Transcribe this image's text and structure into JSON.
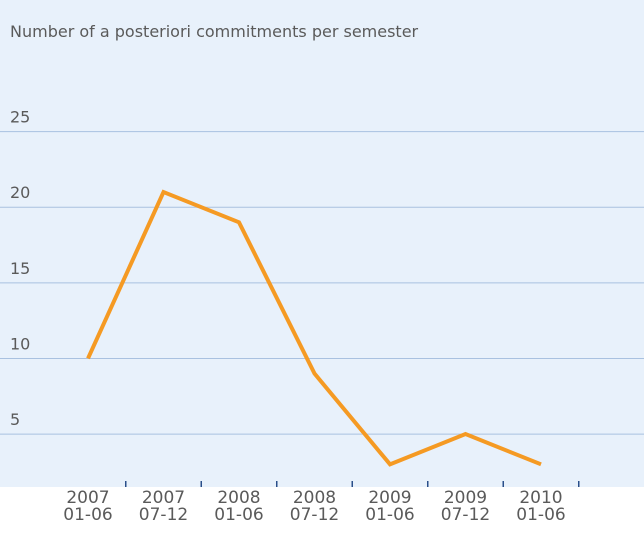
{
  "chart_data": {
    "type": "line",
    "title": "Number of a posteriori commitments per semester",
    "categories": [
      "2007\n01-06",
      "2007\n07-12",
      "2008\n01-06",
      "2008\n07-12",
      "2009\n01-06",
      "2009\n07-12",
      "2010\n01-06"
    ],
    "values": [
      10,
      21,
      19,
      9,
      3,
      5,
      3
    ],
    "color": "#f59a23",
    "ylim": [
      1.5,
      33.7
    ],
    "yticks": [
      5,
      10,
      15,
      20,
      25
    ],
    "grid": true
  }
}
